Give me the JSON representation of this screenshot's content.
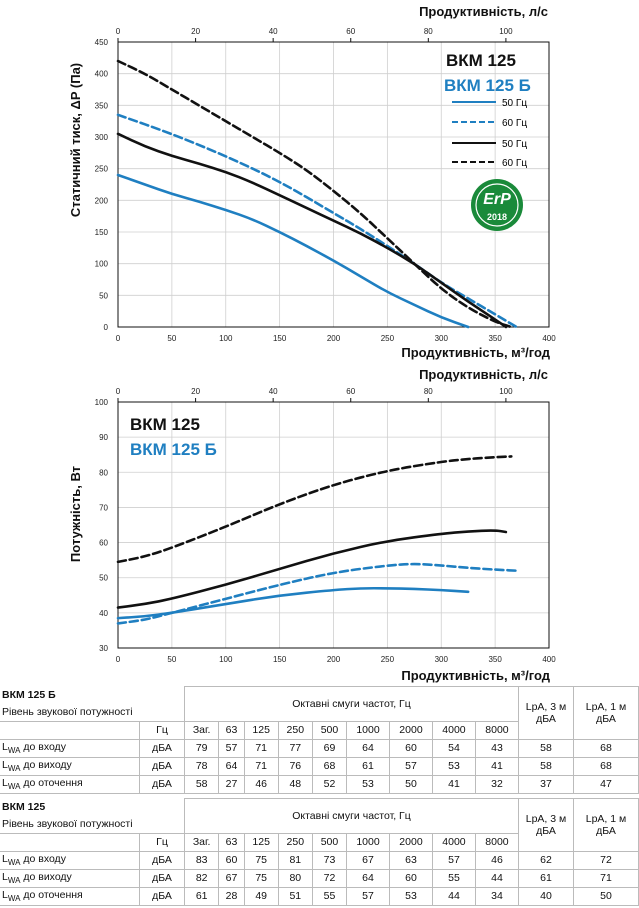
{
  "chart_data": [
    {
      "type": "line",
      "title": "",
      "top_xlabel": "Продуктивність, л/с",
      "xlabel": "Продуктивність, м³/год",
      "ylabel": "Статичний тиск, ΔP (Па)",
      "xlim": [
        0,
        400
      ],
      "ylim": [
        0,
        450
      ],
      "x_ticks": [
        "0",
        "50",
        "100",
        "150",
        "200",
        "250",
        "300",
        "350",
        "400"
      ],
      "y_ticks": [
        "0",
        "50",
        "100",
        "150",
        "200",
        "250",
        "300",
        "350",
        "400",
        "450"
      ],
      "top_ticks": [
        "0",
        "20",
        "40",
        "60",
        "80",
        "100"
      ],
      "top_tick_values_m3h": [
        0,
        72,
        144,
        216,
        288,
        360
      ],
      "grid": true,
      "legend_title_1": "ВКМ 125",
      "legend_title_2": "ВКМ 125 Б",
      "legend_position": "top-right",
      "badge": {
        "text": "ErP",
        "year": "2018",
        "color": "#1a8a3a"
      },
      "series": [
        {
          "name": "50 Гц",
          "model": "ВКМ 125 Б",
          "color": "#1f7fc1",
          "dash": false,
          "x": [
            0,
            25,
            50,
            75,
            100,
            125,
            150,
            175,
            200,
            225,
            250,
            275,
            300,
            325
          ],
          "y": [
            240,
            225,
            210,
            198,
            185,
            170,
            150,
            128,
            105,
            80,
            55,
            35,
            15,
            0
          ]
        },
        {
          "name": "60 Гц",
          "model": "ВКМ 125 Б",
          "color": "#1f7fc1",
          "dash": true,
          "x": [
            0,
            50,
            100,
            150,
            200,
            225,
            250,
            275,
            300,
            325,
            350,
            370
          ],
          "y": [
            335,
            305,
            270,
            230,
            180,
            155,
            128,
            100,
            70,
            45,
            20,
            0
          ]
        },
        {
          "name": "50 Гц",
          "model": "ВКМ 125",
          "color": "#111111",
          "dash": false,
          "x": [
            0,
            25,
            50,
            75,
            100,
            125,
            150,
            175,
            200,
            225,
            250,
            275,
            300,
            325,
            350,
            360
          ],
          "y": [
            305,
            285,
            270,
            258,
            245,
            228,
            208,
            188,
            168,
            148,
            125,
            100,
            70,
            40,
            12,
            0
          ]
        },
        {
          "name": "60 Гц",
          "model": "ВКМ 125",
          "color": "#111111",
          "dash": true,
          "x": [
            0,
            25,
            50,
            75,
            100,
            125,
            150,
            175,
            200,
            225,
            250,
            275,
            300,
            325,
            350,
            365
          ],
          "y": [
            420,
            400,
            375,
            350,
            325,
            300,
            275,
            248,
            215,
            180,
            140,
            100,
            60,
            30,
            8,
            0
          ]
        }
      ]
    },
    {
      "type": "line",
      "title": "",
      "top_xlabel": "Продуктивність, л/с",
      "xlabel": "Продуктивність, м³/год",
      "ylabel": "Потужність, Вт",
      "xlim": [
        0,
        400
      ],
      "ylim": [
        30,
        100
      ],
      "x_ticks": [
        "0",
        "50",
        "100",
        "150",
        "200",
        "250",
        "300",
        "350",
        "400"
      ],
      "y_ticks": [
        "30",
        "40",
        "50",
        "60",
        "70",
        "80",
        "90",
        "100"
      ],
      "top_ticks": [
        "0",
        "20",
        "40",
        "60",
        "80",
        "100"
      ],
      "top_tick_values_m3h": [
        0,
        72,
        144,
        216,
        288,
        360
      ],
      "grid": true,
      "legend_title_1": "ВКМ 125",
      "legend_title_2": "ВКМ 125 Б",
      "legend_position": "top-left",
      "series": [
        {
          "name": "50 Гц",
          "model": "ВКМ 125 Б",
          "color": "#1f7fc1",
          "dash": false,
          "x": [
            0,
            25,
            50,
            100,
            150,
            200,
            225,
            250,
            275,
            300,
            325
          ],
          "y": [
            38.5,
            39,
            40,
            42.5,
            45,
            46.5,
            47,
            47,
            46.8,
            46.5,
            46
          ]
        },
        {
          "name": "60 Гц",
          "model": "ВКМ 125 Б",
          "color": "#1f7fc1",
          "dash": true,
          "x": [
            0,
            25,
            50,
            100,
            150,
            200,
            250,
            275,
            300,
            325,
            350,
            370
          ],
          "y": [
            37,
            38,
            40,
            44,
            48,
            51.5,
            53.5,
            54,
            53.5,
            52.8,
            52.3,
            52
          ]
        },
        {
          "name": "50 Гц",
          "model": "ВКМ 125",
          "color": "#111111",
          "dash": false,
          "x": [
            0,
            25,
            50,
            100,
            150,
            200,
            250,
            300,
            325,
            350,
            360
          ],
          "y": [
            41.5,
            42.5,
            44,
            48,
            52.5,
            57,
            60.5,
            62.5,
            63.2,
            63.5,
            63
          ]
        },
        {
          "name": "60 Гц",
          "model": "ВКМ 125",
          "color": "#111111",
          "dash": true,
          "x": [
            0,
            25,
            50,
            100,
            150,
            200,
            250,
            300,
            325,
            350,
            365
          ],
          "y": [
            54.5,
            56,
            58.5,
            64.5,
            71,
            76.5,
            80.5,
            83,
            83.8,
            84.3,
            84.5
          ]
        }
      ]
    }
  ],
  "tables": [
    {
      "model": "ВКМ 125 Б",
      "subtitle": "Рівень звукової потужності",
      "octave_header": "Октавні смуги частот, Гц",
      "hz_label": "Гц",
      "lpa3_header": "LpA, 3 м дБА",
      "lpa1_header": "LpA, 1 м дБА",
      "bands": [
        "Заг.",
        "63",
        "125",
        "250",
        "500",
        "1000",
        "2000",
        "4000",
        "8000"
      ],
      "rows": [
        {
          "label": "до входу",
          "unit": "дБА",
          "values": [
            "79",
            "57",
            "71",
            "77",
            "69",
            "64",
            "60",
            "54",
            "43"
          ],
          "lpa3": "58",
          "lpa1": "68"
        },
        {
          "label": "до виходу",
          "unit": "дБА",
          "values": [
            "78",
            "64",
            "71",
            "76",
            "68",
            "61",
            "57",
            "53",
            "41"
          ],
          "lpa3": "58",
          "lpa1": "68"
        },
        {
          "label": "до оточення",
          "unit": "дБА",
          "values": [
            "58",
            "27",
            "46",
            "48",
            "52",
            "53",
            "50",
            "41",
            "32"
          ],
          "lpa3": "37",
          "lpa1": "47"
        }
      ]
    },
    {
      "model": "ВКМ 125",
      "subtitle": "Рівень звукової потужності",
      "octave_header": "Октавні смуги частот, Гц",
      "hz_label": "Гц",
      "lpa3_header": "LpA, 3 м дБА",
      "lpa1_header": "LpA, 1 м дБА",
      "bands": [
        "Заг.",
        "63",
        "125",
        "250",
        "500",
        "1000",
        "2000",
        "4000",
        "8000"
      ],
      "rows": [
        {
          "label": "до входу",
          "unit": "дБА",
          "values": [
            "83",
            "60",
            "75",
            "81",
            "73",
            "67",
            "63",
            "57",
            "46"
          ],
          "lpa3": "62",
          "lpa1": "72"
        },
        {
          "label": "до виходу",
          "unit": "дБА",
          "values": [
            "82",
            "67",
            "75",
            "80",
            "72",
            "64",
            "60",
            "55",
            "44"
          ],
          "lpa3": "61",
          "lpa1": "71"
        },
        {
          "label": "до оточення",
          "unit": "дБА",
          "values": [
            "61",
            "28",
            "49",
            "51",
            "55",
            "57",
            "53",
            "44",
            "34"
          ],
          "lpa3": "40",
          "lpa1": "50"
        }
      ]
    }
  ]
}
